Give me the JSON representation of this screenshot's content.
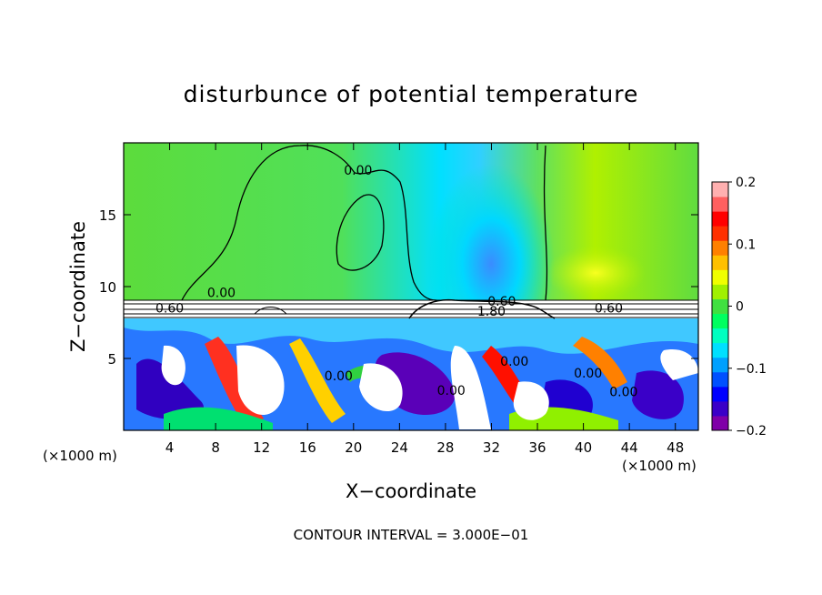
{
  "chart_data": {
    "type": "heatmap",
    "title": "disturbunce of potential temperature",
    "xlabel": "X−coordinate",
    "ylabel": "Z−coordinate",
    "x_unit_left": "(×1000 m)",
    "x_unit_right": "(×1000 m)",
    "xlim": [
      0,
      50
    ],
    "ylim": [
      0,
      20
    ],
    "xticks": [
      4,
      8,
      12,
      16,
      20,
      24,
      28,
      32,
      36,
      40,
      44,
      48
    ],
    "yticks": [
      5,
      10,
      15
    ],
    "footer": "CONTOUR INTERVAL = 3.000E−01",
    "colorbar": {
      "min": -0.2,
      "max": 0.2,
      "ticks": [
        0.2,
        0.1,
        0,
        -0.1,
        -0.2
      ],
      "tick_labels": [
        "0.2",
        "0.1",
        "0",
        "−0.1",
        "−0.2"
      ],
      "colors": [
        "#7f00a8",
        "#3a00c8",
        "#0000ff",
        "#0050ff",
        "#00a0ff",
        "#00e0ff",
        "#00ffc0",
        "#00ff60",
        "#40e040",
        "#a0f000",
        "#f0ff00",
        "#ffc000",
        "#ff8000",
        "#ff3000",
        "#ff0000",
        "#ff6060",
        "#ffb0b0"
      ]
    },
    "contour_labels": [
      {
        "text": "0.00",
        "x": 20.4,
        "y": 18.1
      },
      {
        "text": "0.00",
        "x": 8.5,
        "y": 9.6
      },
      {
        "text": "0.60",
        "x": 4.0,
        "y": 8.5
      },
      {
        "text": "0.60",
        "x": 42.2,
        "y": 8.5
      },
      {
        "text": "0.60",
        "x": 32.9,
        "y": 9.0
      },
      {
        "text": "1.80",
        "x": 32.0,
        "y": 8.3
      },
      {
        "text": "0.00",
        "x": 18.7,
        "y": 3.8
      },
      {
        "text": "0.00",
        "x": 28.5,
        "y": 2.8
      },
      {
        "text": "0.00",
        "x": 34.0,
        "y": 4.8
      },
      {
        "text": "0.00",
        "x": 40.4,
        "y": 4.0
      },
      {
        "text": "0.00",
        "x": 43.5,
        "y": 2.7
      }
    ]
  }
}
